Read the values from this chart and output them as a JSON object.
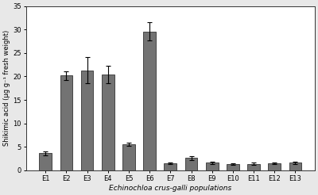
{
  "categories": [
    "E1",
    "E2",
    "E3",
    "E4",
    "E5",
    "E6",
    "E7",
    "E8",
    "E9",
    "E10",
    "E11",
    "E12",
    "E13"
  ],
  "values": [
    3.6,
    20.2,
    21.3,
    20.4,
    5.5,
    29.6,
    1.5,
    2.6,
    1.6,
    1.3,
    1.4,
    1.5,
    1.6
  ],
  "errors": [
    0.4,
    0.9,
    2.8,
    1.8,
    0.3,
    2.0,
    0.2,
    0.4,
    0.3,
    0.2,
    0.3,
    0.2,
    0.3
  ],
  "bar_color": "#737373",
  "edge_color": "#333333",
  "ylabel": "Shikimic acid (μg g⁻¹ fresh weight)",
  "xlabel": "Echinochloa crus-galli populations",
  "ylim": [
    0,
    35
  ],
  "yticks": [
    0,
    5,
    10,
    15,
    20,
    25,
    30,
    35
  ],
  "figure_bg": "#e8e8e8",
  "plot_bg": "#ffffff",
  "figsize": [
    4.0,
    2.46
  ],
  "dpi": 100,
  "bar_width": 0.6
}
